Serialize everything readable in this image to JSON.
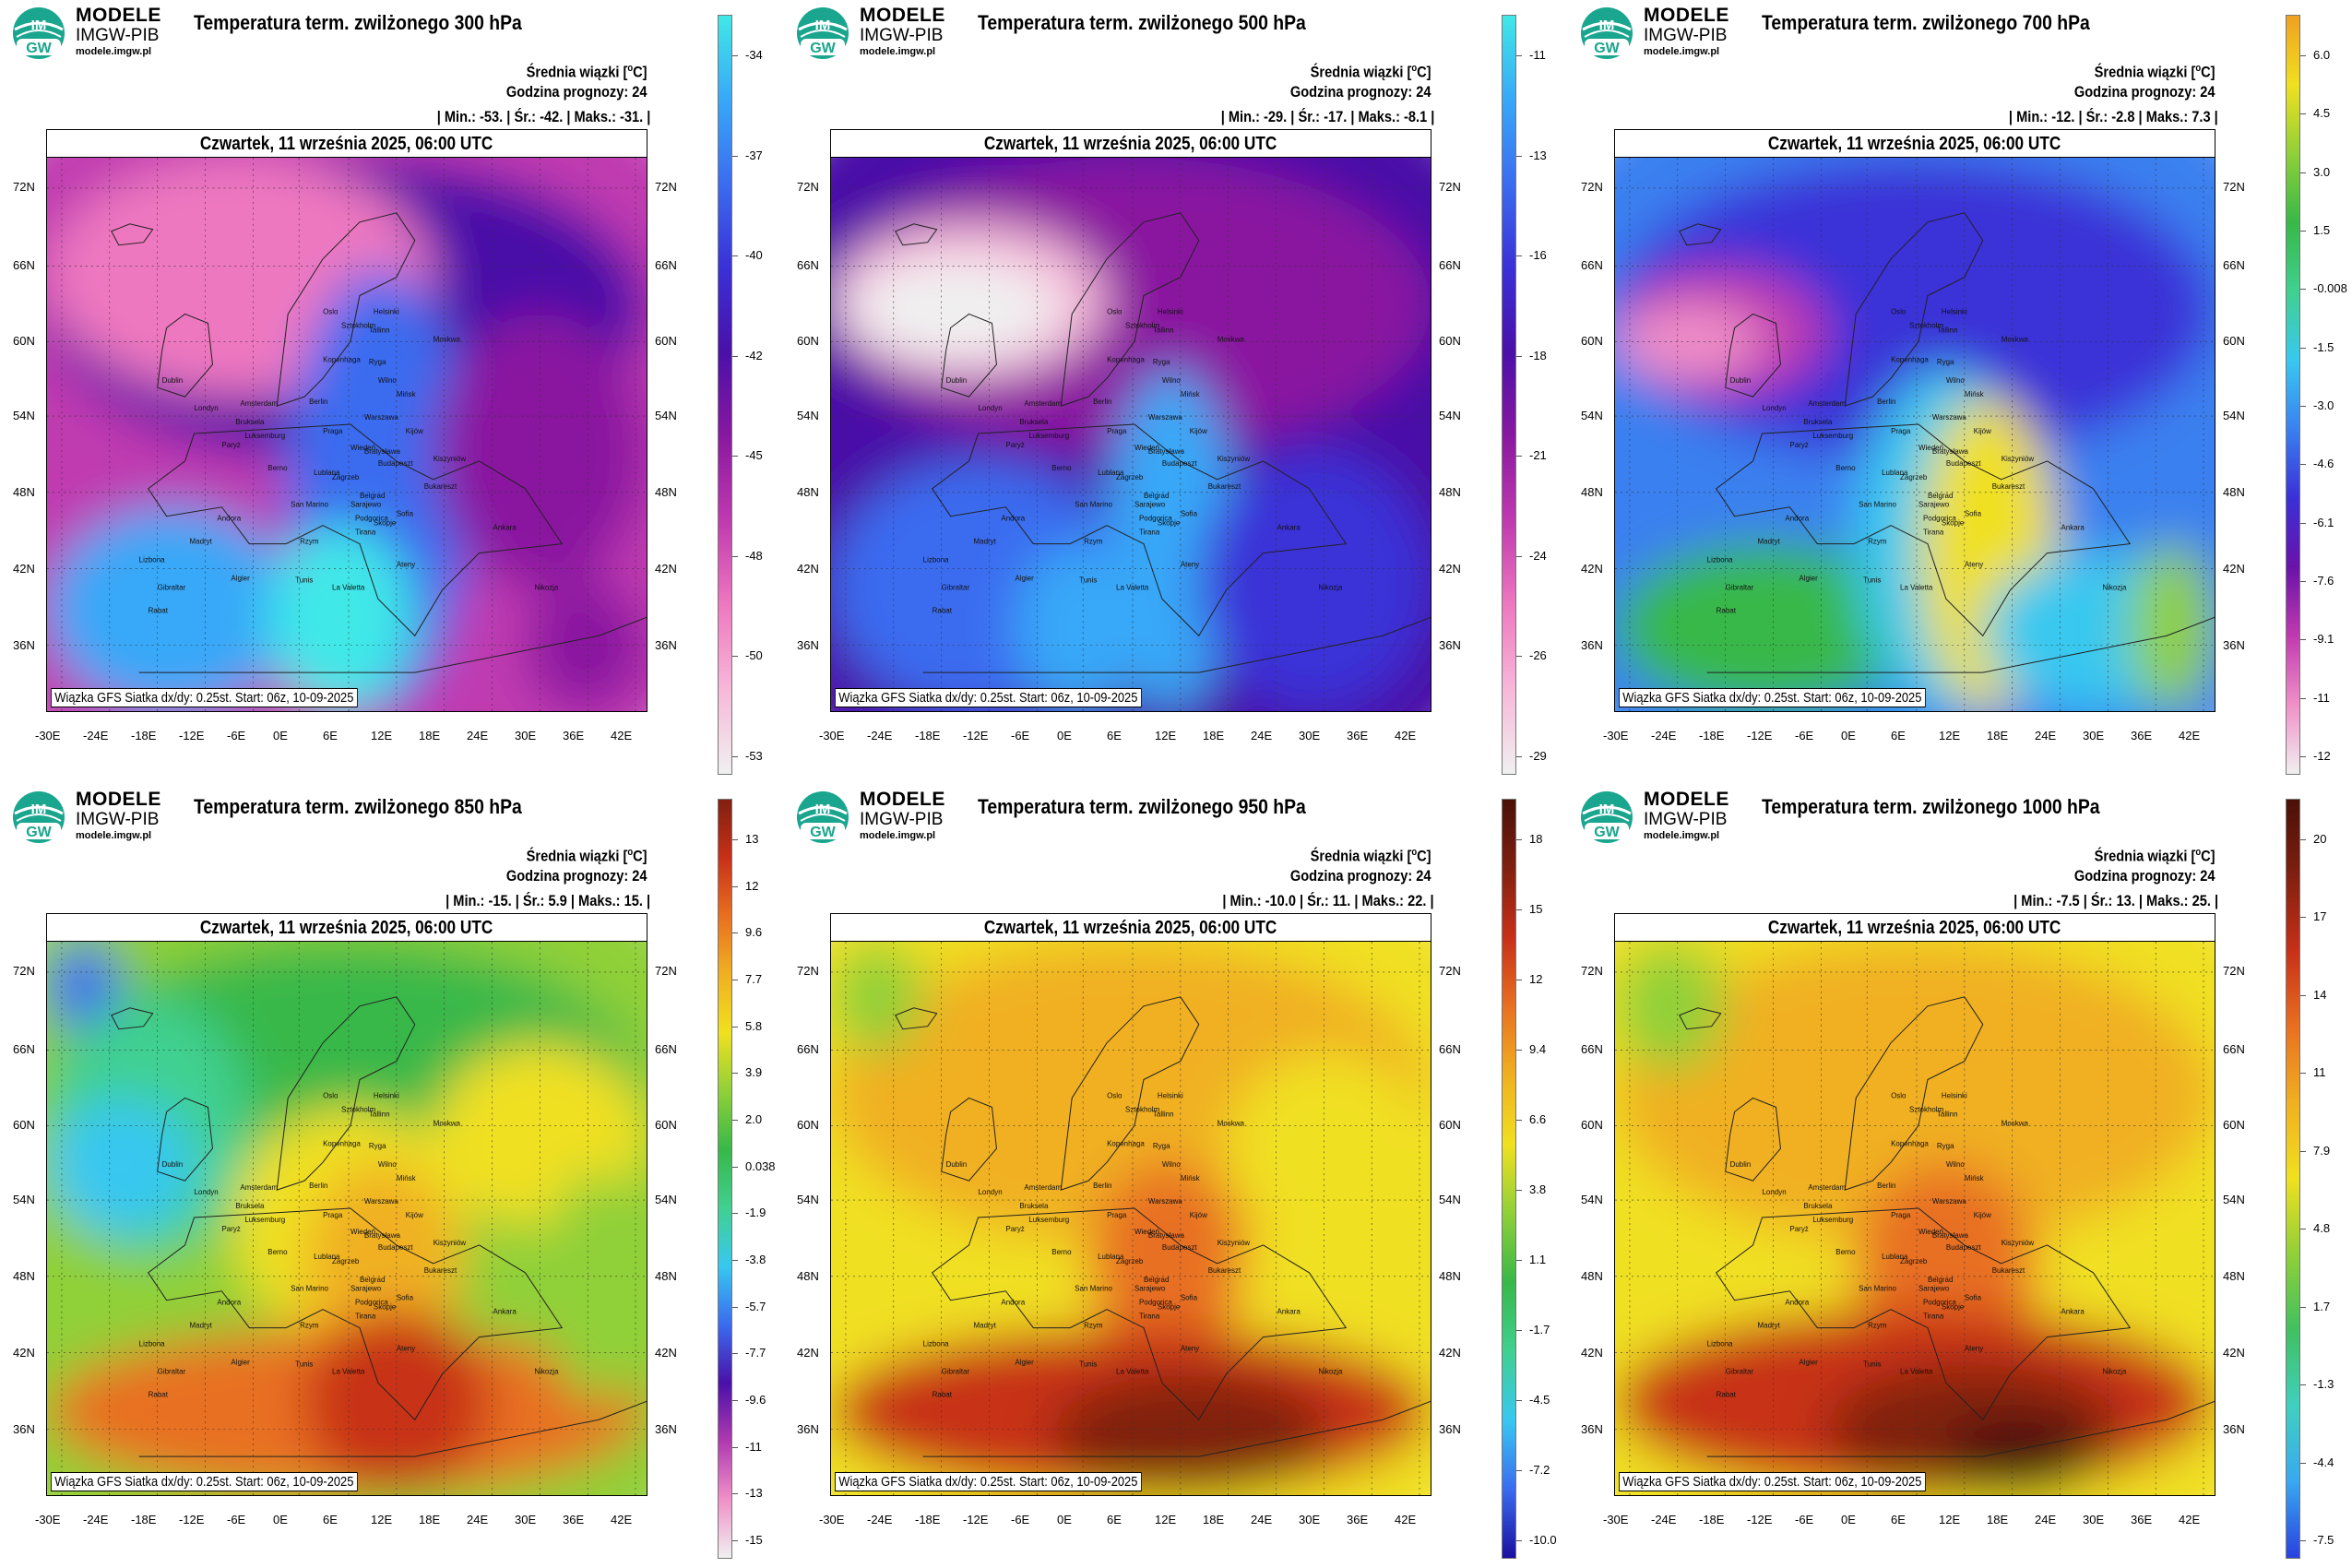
{
  "brand": {
    "name": "MODELE",
    "org": "IMGW-PIB",
    "site": "modele.imgw.pl",
    "logo_text_top": "IM",
    "logo_text_bottom": "GW"
  },
  "common": {
    "mean_label": "Średnia wiązki [",
    "mean_unit": "C]",
    "forecast_label": "Godzina prognozy: 24",
    "date": "Czwartek, 11 września 2025, 06:00 UTC",
    "footer": "Wiązka GFS Siatka dx/dy: 0.25st. Start: 06z, 10-09-2025",
    "lat_ticks": [
      "72N",
      "66N",
      "60N",
      "54N",
      "48N",
      "42N",
      "36N"
    ],
    "lon_ticks": [
      "-30E",
      "-24E",
      "-18E",
      "-12E",
      "-6E",
      "0E",
      "6E",
      "12E",
      "18E",
      "24E",
      "30E",
      "36E",
      "42E"
    ]
  },
  "panels": [
    {
      "title": "Temperatura term. zwilżonego 300 hPa",
      "min": "-53.",
      "mean": "-42.",
      "max": "-31.",
      "colorbar": [
        "-34",
        "-37",
        "-40",
        "-42",
        "-45",
        "-48",
        "-50",
        "-53"
      ],
      "palette": [
        "#f0f0f0",
        "#f7b8d8",
        "#ee78c0",
        "#c03ab0",
        "#8a18a0",
        "#4a10a8",
        "#3a30d8",
        "#3a6cf0",
        "#38a8f8",
        "#40e8e8"
      ],
      "field": "p300"
    },
    {
      "title": "Temperatura term. zwilżonego 500 hPa",
      "min": "-29.",
      "mean": "-17.",
      "max": "-8.1",
      "colorbar": [
        "-11",
        "-13",
        "-16",
        "-18",
        "-21",
        "-24",
        "-26",
        "-29"
      ],
      "palette": [
        "#f0f0f0",
        "#f7b8d8",
        "#ee78c0",
        "#c03ab0",
        "#8a18a0",
        "#4a10a8",
        "#3a30d8",
        "#3a6cf0",
        "#38a8f8",
        "#40e8e8"
      ],
      "field": "p500"
    },
    {
      "title": "Temperatura term. zwilżonego 700 hPa",
      "min": "-12.",
      "mean": "-2.8",
      "max": "7.3",
      "colorbar": [
        "6.0",
        "4.5",
        "3.0",
        "1.5",
        "-0.008",
        "-1.5",
        "-3.0",
        "-4.6",
        "-6.1",
        "-7.6",
        "-9.1",
        "-11",
        "-12"
      ],
      "palette": [
        "#f0f0f0",
        "#f090c8",
        "#c03ab0",
        "#6a12a8",
        "#3a30d8",
        "#3a80f0",
        "#38c8f0",
        "#40d090",
        "#38b848",
        "#90d038",
        "#f0e020",
        "#f0a020"
      ],
      "field": "p700"
    },
    {
      "title": "Temperatura term. zwilżonego 850 hPa",
      "min": "-15.",
      "mean": "5.9",
      "max": "15.",
      "colorbar": [
        "13",
        "12",
        "9.6",
        "7.7",
        "5.8",
        "3.9",
        "2.0",
        "0.038",
        "-1.9",
        "-3.8",
        "-5.7",
        "-7.7",
        "-9.6",
        "-11",
        "-13",
        "-15"
      ],
      "palette": [
        "#f0f0f0",
        "#f090c8",
        "#b03ab0",
        "#4a10a8",
        "#3a6cf0",
        "#38c8f0",
        "#40d090",
        "#38b848",
        "#90d038",
        "#f0e020",
        "#f0b020",
        "#e87020",
        "#c83018",
        "#802010"
      ],
      "field": "p850"
    },
    {
      "title": "Temperatura term. zwilżonego 950 hPa",
      "min": "-10.0",
      "mean": "11.",
      "max": "22.",
      "colorbar": [
        "18",
        "15",
        "12",
        "9.4",
        "6.6",
        "3.8",
        "1.1",
        "-1.7",
        "-4.5",
        "-7.2",
        "-10.0"
      ],
      "palette": [
        "#1a10a0",
        "#3a6cf0",
        "#38c8f0",
        "#40d090",
        "#38b848",
        "#90d038",
        "#f0e020",
        "#f0b020",
        "#e87020",
        "#c83018",
        "#802010",
        "#4a1008"
      ],
      "field": "p950"
    },
    {
      "title": "Temperatura term. zwilżonego 1000 hPa",
      "min": "-7.5",
      "mean": "13.",
      "max": "25.",
      "colorbar": [
        "20",
        "17",
        "14",
        "11",
        "7.9",
        "4.8",
        "1.7",
        "-1.3",
        "-4.4",
        "-7.5"
      ],
      "palette": [
        "#2a40e0",
        "#38a8f0",
        "#40d0c0",
        "#40c060",
        "#90d038",
        "#f0e020",
        "#f0b020",
        "#e87020",
        "#c83018",
        "#802010",
        "#4a1008"
      ],
      "field": "p1000"
    }
  ],
  "cities": [
    "Oslo",
    "Helsinki",
    "Sztokholm",
    "Tallinn",
    "Ryga",
    "Kopenhaga",
    "Moskwa",
    "Wilno",
    "Mińsk",
    "Dublin",
    "Londyn",
    "Amsterdam",
    "Berlin",
    "Warszawa",
    "Kijów",
    "Bruksela",
    "Paryż",
    "Luksemburg",
    "Praga",
    "Wiedeń",
    "Bratysława",
    "Budapeszt",
    "Kiszyniów",
    "Berno",
    "Lublana",
    "Zagrzeb",
    "Belgrad",
    "Bukareszt",
    "Sarajewo",
    "San Marino",
    "Podgorica",
    "Sofia",
    "Skopje",
    "Tirana",
    "Ateny",
    "Andora",
    "Madryt",
    "Lizbona",
    "Rzym",
    "Ankara",
    "Algier",
    "Tunis",
    "La Valetta",
    "Rabat",
    "Gibraltar",
    "Nikozja"
  ]
}
